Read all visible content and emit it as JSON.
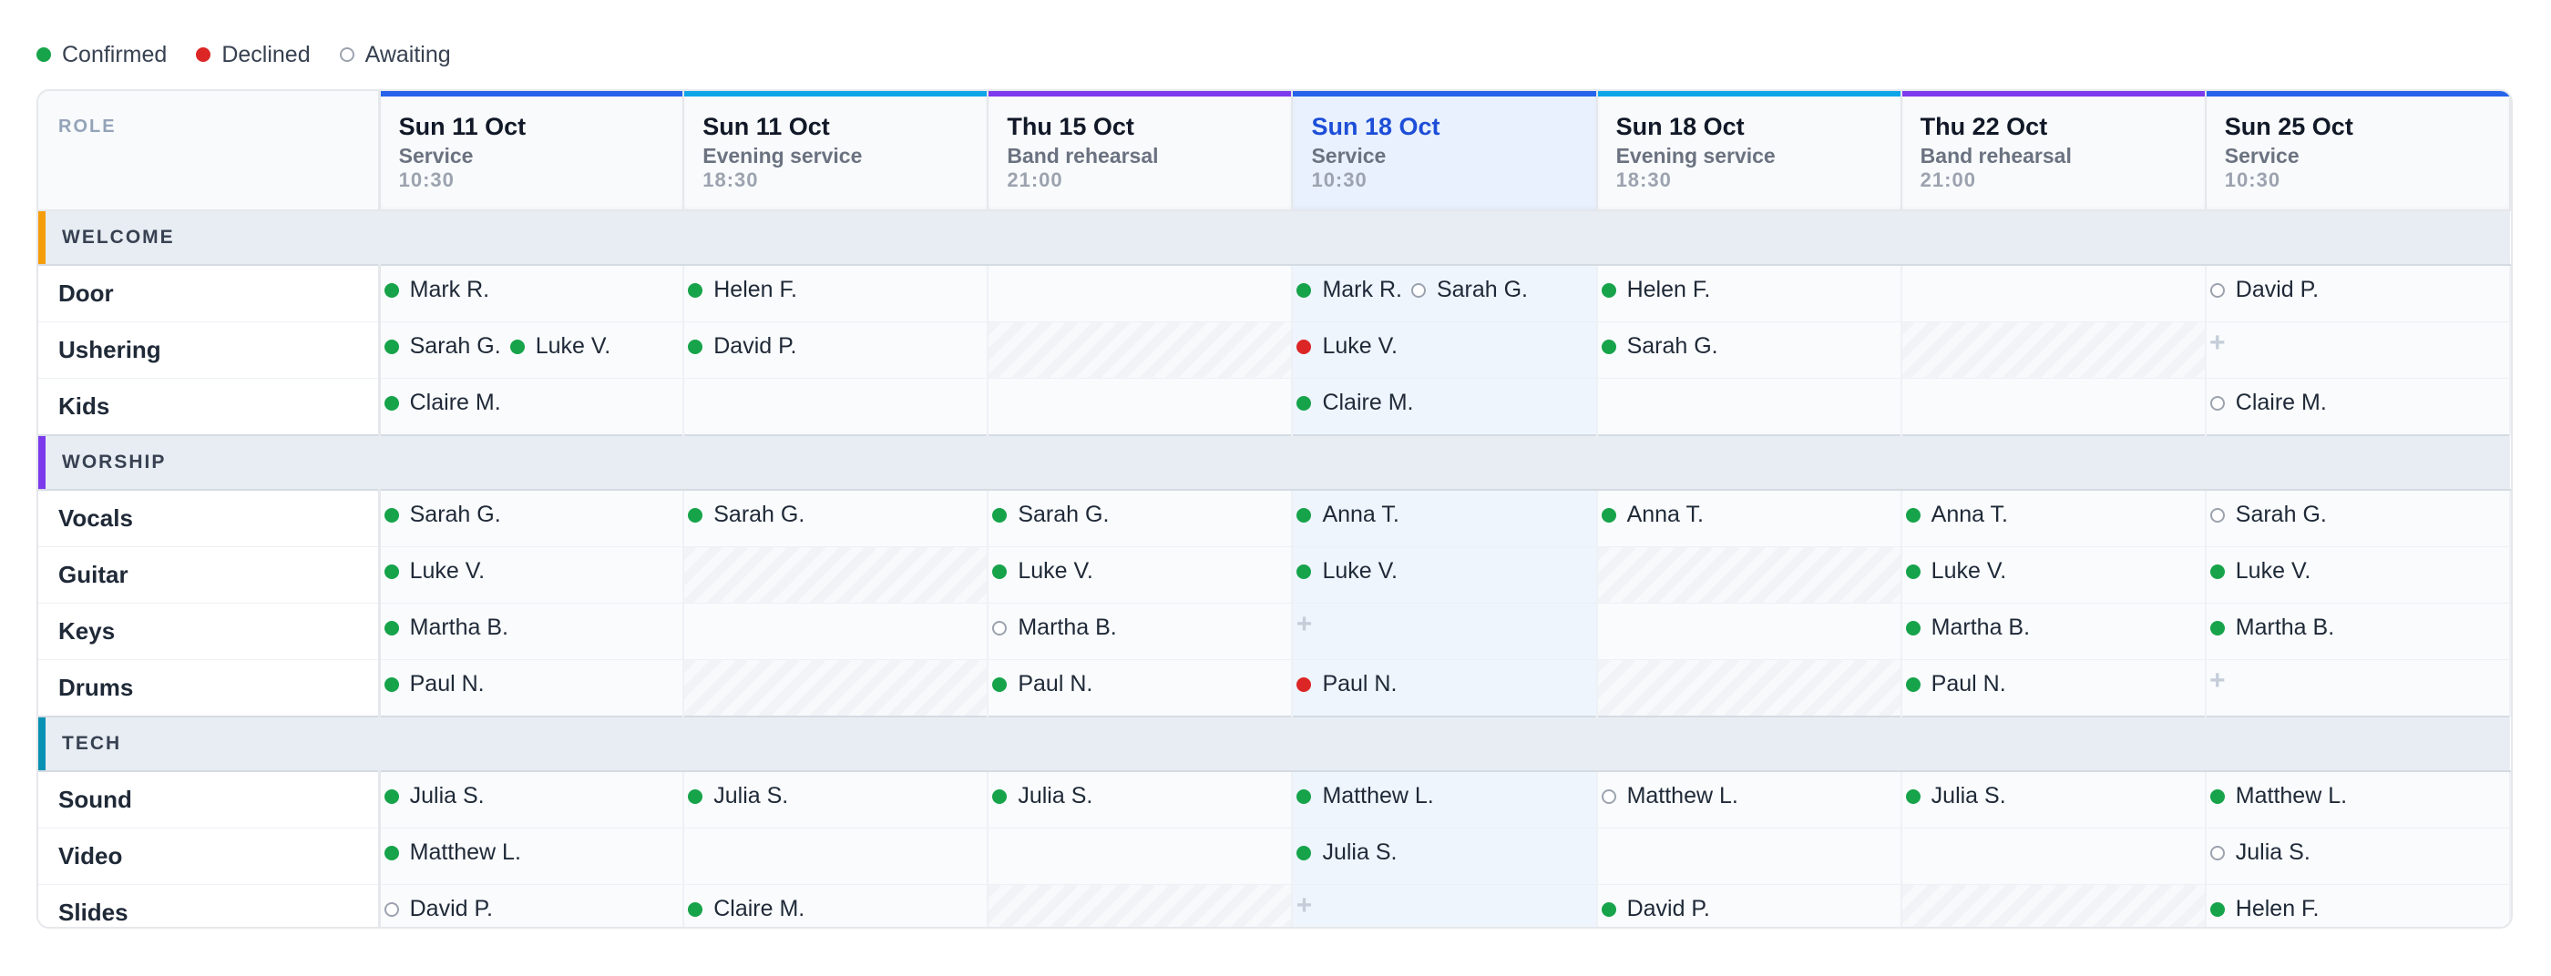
{
  "legend": [
    {
      "status": "confirmed",
      "label": "Confirmed"
    },
    {
      "status": "declined",
      "label": "Declined"
    },
    {
      "status": "awaiting",
      "label": "Awaiting"
    }
  ],
  "colors": {
    "confirmed": "#16a34a",
    "declined": "#dc2626",
    "awaiting": "#9ca3af",
    "service_bar": "#2563eb",
    "evening_bar": "#0ea5e9",
    "rehearsal_bar": "#7c3aed",
    "welcome_accent": "#f59e0b",
    "worship_accent": "#7c3aed",
    "tech_accent": "#0891b2"
  },
  "role_header": "ROLE",
  "today_index": 3,
  "dates": [
    {
      "date": "Sun 11 Oct",
      "type": "Service",
      "time": "10:30",
      "bar": "#2563eb"
    },
    {
      "date": "Sun 11 Oct",
      "type": "Evening service",
      "time": "18:30",
      "bar": "#0ea5e9"
    },
    {
      "date": "Thu 15 Oct",
      "type": "Band rehearsal",
      "time": "21:00",
      "bar": "#7c3aed"
    },
    {
      "date": "Sun 18 Oct",
      "type": "Service",
      "time": "10:30",
      "bar": "#2563eb"
    },
    {
      "date": "Sun 18 Oct",
      "type": "Evening service",
      "time": "18:30",
      "bar": "#0ea5e9"
    },
    {
      "date": "Thu 22 Oct",
      "type": "Band rehearsal",
      "time": "21:00",
      "bar": "#7c3aed"
    },
    {
      "date": "Sun 25 Oct",
      "type": "Service",
      "time": "10:30",
      "bar": "#2563eb"
    }
  ],
  "sections": [
    {
      "name": "WELCOME",
      "accent": "#f59e0b",
      "roles": [
        {
          "name": "Door",
          "cells": [
            {
              "people": [
                {
                  "name": "Mark R.",
                  "status": "confirmed"
                }
              ]
            },
            {
              "people": [
                {
                  "name": "Helen F.",
                  "status": "confirmed"
                }
              ]
            },
            {
              "people": []
            },
            {
              "people": [
                {
                  "name": "Mark R.",
                  "status": "confirmed"
                },
                {
                  "name": "Sarah G.",
                  "status": "awaiting"
                }
              ]
            },
            {
              "people": [
                {
                  "name": "Helen F.",
                  "status": "confirmed"
                }
              ]
            },
            {
              "people": []
            },
            {
              "people": [
                {
                  "name": "David P.",
                  "status": "awaiting"
                }
              ]
            }
          ]
        },
        {
          "name": "Ushering",
          "cells": [
            {
              "people": [
                {
                  "name": "Sarah G.",
                  "status": "confirmed"
                },
                {
                  "name": "Luke V.",
                  "status": "confirmed"
                }
              ]
            },
            {
              "people": [
                {
                  "name": "David P.",
                  "status": "confirmed"
                }
              ]
            },
            {
              "blocked": true,
              "people": []
            },
            {
              "people": [
                {
                  "name": "Luke V.",
                  "status": "declined"
                }
              ]
            },
            {
              "people": [
                {
                  "name": "Sarah G.",
                  "status": "confirmed"
                }
              ]
            },
            {
              "blocked": true,
              "people": []
            },
            {
              "add": true,
              "people": []
            }
          ]
        },
        {
          "name": "Kids",
          "cells": [
            {
              "people": [
                {
                  "name": "Claire M.",
                  "status": "confirmed"
                }
              ]
            },
            {
              "people": []
            },
            {
              "people": []
            },
            {
              "people": [
                {
                  "name": "Claire M.",
                  "status": "confirmed"
                }
              ]
            },
            {
              "people": []
            },
            {
              "people": []
            },
            {
              "people": [
                {
                  "name": "Claire M.",
                  "status": "awaiting"
                }
              ]
            }
          ]
        }
      ]
    },
    {
      "name": "WORSHIP",
      "accent": "#7c3aed",
      "roles": [
        {
          "name": "Vocals",
          "cells": [
            {
              "people": [
                {
                  "name": "Sarah G.",
                  "status": "confirmed"
                }
              ]
            },
            {
              "people": [
                {
                  "name": "Sarah G.",
                  "status": "confirmed"
                }
              ]
            },
            {
              "people": [
                {
                  "name": "Sarah G.",
                  "status": "confirmed"
                }
              ]
            },
            {
              "people": [
                {
                  "name": "Anna T.",
                  "status": "confirmed"
                }
              ]
            },
            {
              "people": [
                {
                  "name": "Anna T.",
                  "status": "confirmed"
                }
              ]
            },
            {
              "people": [
                {
                  "name": "Anna T.",
                  "status": "confirmed"
                }
              ]
            },
            {
              "people": [
                {
                  "name": "Sarah G.",
                  "status": "awaiting"
                }
              ]
            }
          ]
        },
        {
          "name": "Guitar",
          "cells": [
            {
              "people": [
                {
                  "name": "Luke V.",
                  "status": "confirmed"
                }
              ]
            },
            {
              "blocked": true,
              "people": []
            },
            {
              "people": [
                {
                  "name": "Luke V.",
                  "status": "confirmed"
                }
              ]
            },
            {
              "people": [
                {
                  "name": "Luke V.",
                  "status": "confirmed"
                }
              ]
            },
            {
              "blocked": true,
              "people": []
            },
            {
              "people": [
                {
                  "name": "Luke V.",
                  "status": "confirmed"
                }
              ]
            },
            {
              "people": [
                {
                  "name": "Luke V.",
                  "status": "confirmed"
                }
              ]
            }
          ]
        },
        {
          "name": "Keys",
          "cells": [
            {
              "people": [
                {
                  "name": "Martha B.",
                  "status": "confirmed"
                }
              ]
            },
            {
              "people": []
            },
            {
              "people": [
                {
                  "name": "Martha B.",
                  "status": "awaiting"
                }
              ]
            },
            {
              "add": true,
              "people": []
            },
            {
              "people": []
            },
            {
              "people": [
                {
                  "name": "Martha B.",
                  "status": "confirmed"
                }
              ]
            },
            {
              "people": [
                {
                  "name": "Martha B.",
                  "status": "confirmed"
                }
              ]
            }
          ]
        },
        {
          "name": "Drums",
          "cells": [
            {
              "people": [
                {
                  "name": "Paul N.",
                  "status": "confirmed"
                }
              ]
            },
            {
              "blocked": true,
              "people": []
            },
            {
              "people": [
                {
                  "name": "Paul N.",
                  "status": "confirmed"
                }
              ]
            },
            {
              "people": [
                {
                  "name": "Paul N.",
                  "status": "declined"
                }
              ]
            },
            {
              "blocked": true,
              "people": []
            },
            {
              "people": [
                {
                  "name": "Paul N.",
                  "status": "confirmed"
                }
              ]
            },
            {
              "add": true,
              "people": []
            }
          ]
        }
      ]
    },
    {
      "name": "TECH",
      "accent": "#0891b2",
      "roles": [
        {
          "name": "Sound",
          "cells": [
            {
              "people": [
                {
                  "name": "Julia S.",
                  "status": "confirmed"
                }
              ]
            },
            {
              "people": [
                {
                  "name": "Julia S.",
                  "status": "confirmed"
                }
              ]
            },
            {
              "people": [
                {
                  "name": "Julia S.",
                  "status": "confirmed"
                }
              ]
            },
            {
              "people": [
                {
                  "name": "Matthew L.",
                  "status": "confirmed"
                }
              ]
            },
            {
              "people": [
                {
                  "name": "Matthew L.",
                  "status": "awaiting"
                }
              ]
            },
            {
              "people": [
                {
                  "name": "Julia S.",
                  "status": "confirmed"
                }
              ]
            },
            {
              "people": [
                {
                  "name": "Matthew L.",
                  "status": "confirmed"
                }
              ]
            }
          ]
        },
        {
          "name": "Video",
          "cells": [
            {
              "people": [
                {
                  "name": "Matthew L.",
                  "status": "confirmed"
                }
              ]
            },
            {
              "people": []
            },
            {
              "people": []
            },
            {
              "people": [
                {
                  "name": "Julia S.",
                  "status": "confirmed"
                }
              ]
            },
            {
              "people": []
            },
            {
              "people": []
            },
            {
              "people": [
                {
                  "name": "Julia S.",
                  "status": "awaiting"
                }
              ]
            }
          ]
        },
        {
          "name": "Slides",
          "cells": [
            {
              "people": [
                {
                  "name": "David P.",
                  "status": "awaiting"
                }
              ]
            },
            {
              "people": [
                {
                  "name": "Claire M.",
                  "status": "confirmed"
                }
              ]
            },
            {
              "blocked": true,
              "people": []
            },
            {
              "add": true,
              "people": []
            },
            {
              "people": [
                {
                  "name": "David P.",
                  "status": "confirmed"
                }
              ]
            },
            {
              "blocked": true,
              "people": []
            },
            {
              "people": [
                {
                  "name": "Helen F.",
                  "status": "confirmed"
                }
              ]
            }
          ]
        }
      ]
    }
  ]
}
